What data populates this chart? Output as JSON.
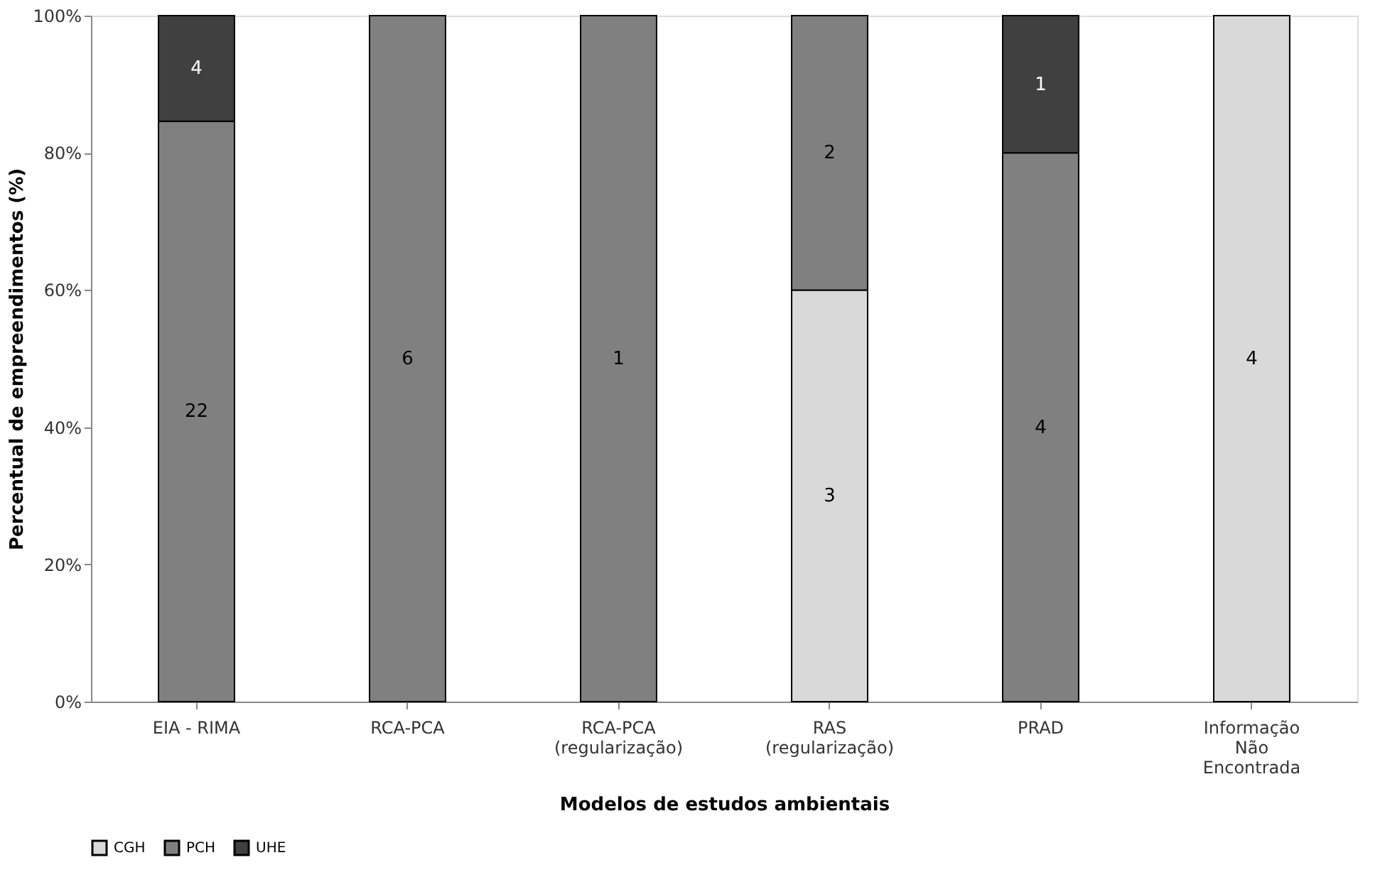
{
  "chart_data": {
    "type": "bar",
    "stacked": true,
    "xlabel": "Modelos de estudos ambientais",
    "ylabel": "Percentual de empreendimentos (%)",
    "categories": [
      "EIA - RIMA",
      "RCA-PCA",
      "RCA-PCA\n(regularização)",
      "RAS\n(regularização)",
      "PRAD",
      "Informação\nNão\nEncontrada"
    ],
    "series": [
      {
        "name": "CGH",
        "color": "#d9d9d9",
        "values": [
          0,
          0,
          0,
          60,
          0,
          100
        ]
      },
      {
        "name": "PCH",
        "color": "#808080",
        "values": [
          84.6,
          100,
          100,
          40,
          80,
          0
        ]
      },
      {
        "name": "UHE",
        "color": "#404040",
        "values": [
          15.4,
          0,
          0,
          0,
          20,
          0
        ]
      }
    ],
    "annotations": [
      "3",
      "4",
      "22",
      "6",
      "1",
      "2",
      "4",
      "4",
      "1"
    ],
    "ylim": [
      0,
      100
    ],
    "yticks": [
      {
        "value": 0,
        "label": "0%"
      },
      {
        "value": 20,
        "label": "20%"
      },
      {
        "value": 40,
        "label": "40%"
      },
      {
        "value": 60,
        "label": "60%"
      },
      {
        "value": 80,
        "label": "80%"
      },
      {
        "value": 100,
        "label": "100%"
      }
    ],
    "grid": false,
    "legend": "bottom"
  }
}
